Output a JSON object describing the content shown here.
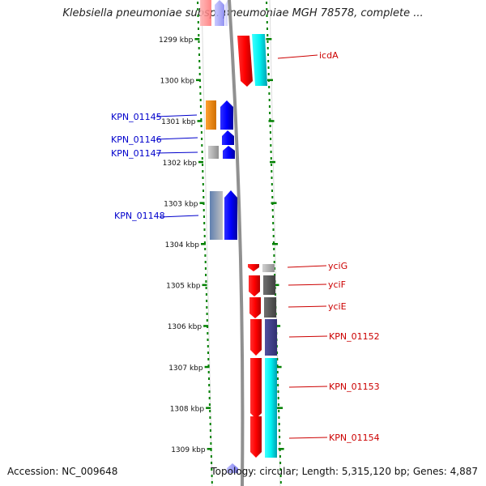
{
  "title": "Klebsiella pneumoniae subsp. pneumoniae MGH 78578, complete ...",
  "footer": {
    "accession": "Accession: NC_009648",
    "summary": "Topology: circular; Length: 5,315,120 bp; Genes: 4,887"
  },
  "scale": {
    "ticks": [
      {
        "label": "1299 kbp",
        "kbp": 1299
      },
      {
        "label": "1300 kbp",
        "kbp": 1300
      },
      {
        "label": "1301 kbp",
        "kbp": 1301
      },
      {
        "label": "1302 kbp",
        "kbp": 1302
      },
      {
        "label": "1303 kbp",
        "kbp": 1303
      },
      {
        "label": "1304 kbp",
        "kbp": 1304
      },
      {
        "label": "1305 kbp",
        "kbp": 1305
      },
      {
        "label": "1306 kbp",
        "kbp": 1306
      },
      {
        "label": "1307 kbp",
        "kbp": 1307
      },
      {
        "label": "1308 kbp",
        "kbp": 1308
      },
      {
        "label": "1309 kbp",
        "kbp": 1309
      }
    ]
  },
  "colors": {
    "left_labels": "#0000cc",
    "right_labels": "#cc0000",
    "dotted_track": "#008000",
    "backbone": "#808080"
  },
  "gene_labels_left": [
    {
      "name": "KPN_01145"
    },
    {
      "name": "KPN_01146"
    },
    {
      "name": "KPN_01147"
    },
    {
      "name": "KPN_01148"
    }
  ],
  "gene_labels_right": [
    {
      "name": "icdA"
    },
    {
      "name": "yciG"
    },
    {
      "name": "yciF"
    },
    {
      "name": "yciE"
    },
    {
      "name": "KPN_01152"
    },
    {
      "name": "KPN_01153"
    },
    {
      "name": "KPN_01154"
    }
  ]
}
